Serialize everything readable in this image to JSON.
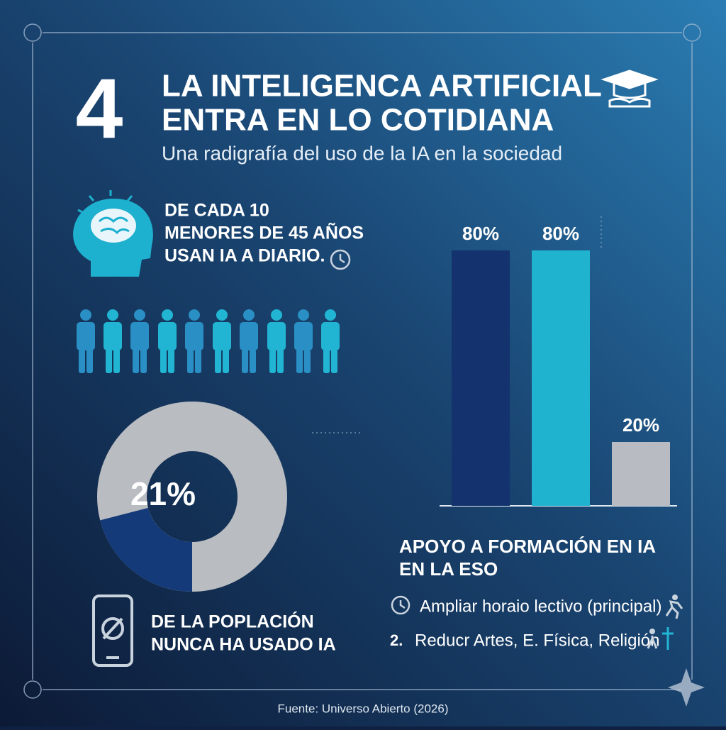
{
  "header": {
    "number": "4",
    "title_lines": [
      "LA INTELIGENCA ARTIFICIAL",
      "ENTRA EN LO COTIDIANA"
    ],
    "subtitle": "Una radigrafía del uso de la IA en la sociedad"
  },
  "stat_daily": {
    "lines": [
      "DE CADA 10",
      "MENORES DE 45 AÑOS",
      "USAN IA A DIARIO."
    ]
  },
  "stat_never": {
    "lines": [
      "DE LA POPLACIÓN",
      "NUNCA HA USADO IA"
    ]
  },
  "chart_data": [
    {
      "type": "donut",
      "values": [
        21
      ],
      "value_labels": [
        "21%"
      ],
      "color": "#143a7a",
      "rest_color": "#b9bcc1"
    },
    {
      "type": "bar",
      "title_lines": [
        "APOYO A FORMACIÓN EN IA",
        "EN LA ESO"
      ],
      "categories": [
        null,
        null,
        null
      ],
      "values": [
        80,
        80,
        20
      ],
      "value_labels": [
        "80%",
        "80%",
        "20%"
      ],
      "colors": [
        "#14336e",
        "#1fb3d0",
        "#b8bcc2"
      ]
    }
  ],
  "list": [
    {
      "text": "Ampliar horaio lectivo (principal)"
    },
    {
      "number": "2.",
      "text": "Reducr Artes, E. Física, Religión"
    }
  ],
  "footer": "Fuente: Universo Abierto (2026)"
}
